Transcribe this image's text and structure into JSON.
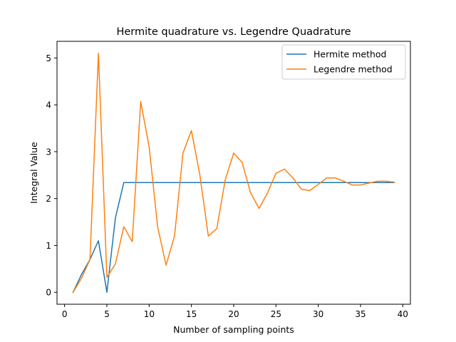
{
  "chart_data": {
    "type": "line",
    "title": "Hermite quadrature vs. Legendre Quadrature",
    "xlabel": "Number of sampling points",
    "ylabel": "Integral Value",
    "xlim": [
      -0.9,
      40.9
    ],
    "ylim": [
      -0.255,
      5.355
    ],
    "xticks": [
      0,
      5,
      10,
      15,
      20,
      25,
      30,
      35,
      40
    ],
    "yticks": [
      0,
      1,
      2,
      3,
      4,
      5
    ],
    "grid": false,
    "legend_position": "upper right",
    "series": [
      {
        "name": "Hermite method",
        "color": "#1f77b4",
        "x": [
          1,
          2,
          3,
          4,
          5,
          6,
          7,
          8,
          9,
          10,
          11,
          12,
          13,
          14,
          15,
          16,
          17,
          18,
          19,
          20,
          21,
          22,
          23,
          24,
          25,
          26,
          27,
          28,
          29,
          30,
          31,
          32,
          33,
          34,
          35,
          36,
          37,
          38,
          39
        ],
        "y": [
          0.0,
          0.38,
          0.7,
          1.1,
          0.0,
          1.58,
          2.34,
          2.34,
          2.34,
          2.34,
          2.34,
          2.34,
          2.34,
          2.34,
          2.34,
          2.34,
          2.34,
          2.34,
          2.34,
          2.34,
          2.34,
          2.34,
          2.34,
          2.34,
          2.34,
          2.34,
          2.34,
          2.34,
          2.34,
          2.34,
          2.34,
          2.34,
          2.34,
          2.34,
          2.34,
          2.34,
          2.34,
          2.34,
          2.34
        ]
      },
      {
        "name": "Legendre method",
        "color": "#ff7f0e",
        "x": [
          1,
          2,
          3,
          4,
          5,
          6,
          7,
          8,
          9,
          10,
          11,
          12,
          13,
          14,
          15,
          16,
          17,
          18,
          19,
          20,
          21,
          22,
          23,
          24,
          25,
          26,
          27,
          28,
          29,
          30,
          31,
          32,
          33,
          34,
          35,
          36,
          37,
          38,
          39
        ],
        "y": [
          0.0,
          0.3,
          0.7,
          5.1,
          0.32,
          0.6,
          1.4,
          1.08,
          4.07,
          3.1,
          1.4,
          0.58,
          1.2,
          2.97,
          3.45,
          2.5,
          1.2,
          1.36,
          2.4,
          2.97,
          2.77,
          2.12,
          1.79,
          2.12,
          2.54,
          2.63,
          2.44,
          2.2,
          2.17,
          2.3,
          2.44,
          2.44,
          2.37,
          2.29,
          2.29,
          2.33,
          2.37,
          2.37,
          2.35
        ]
      }
    ]
  }
}
